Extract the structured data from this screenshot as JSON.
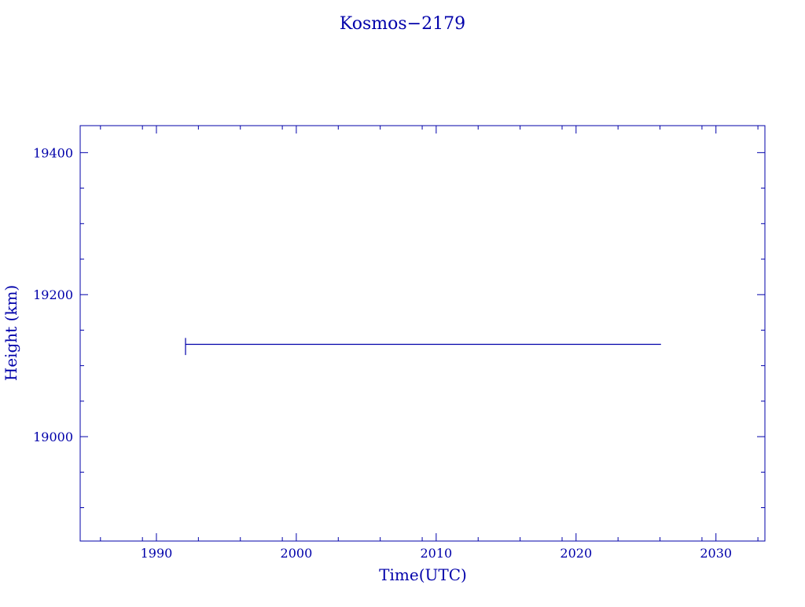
{
  "chart_data": {
    "type": "line",
    "title": "Kosmos−2179",
    "xlabel": "Time(UTC)",
    "ylabel": "Height (km)",
    "xlim": [
      1984.55,
      2033.5
    ],
    "ylim": [
      18853,
      19438
    ],
    "x_ticks": [
      1990,
      2000,
      2010,
      2020,
      2030
    ],
    "x_tick_labels": [
      "1990",
      "2000",
      "2010",
      "2020",
      "2030"
    ],
    "y_ticks": [
      19000,
      19200,
      19400
    ],
    "y_tick_labels": [
      "19000",
      "19200",
      "19400"
    ],
    "grid": false,
    "color": "#0000aa",
    "series": [
      {
        "x": [
          1992.08,
          1992.08,
          1992.08,
          1992.1,
          2026.07
        ],
        "y": [
          19139,
          19115,
          19130,
          19130,
          19130
        ]
      }
    ]
  }
}
